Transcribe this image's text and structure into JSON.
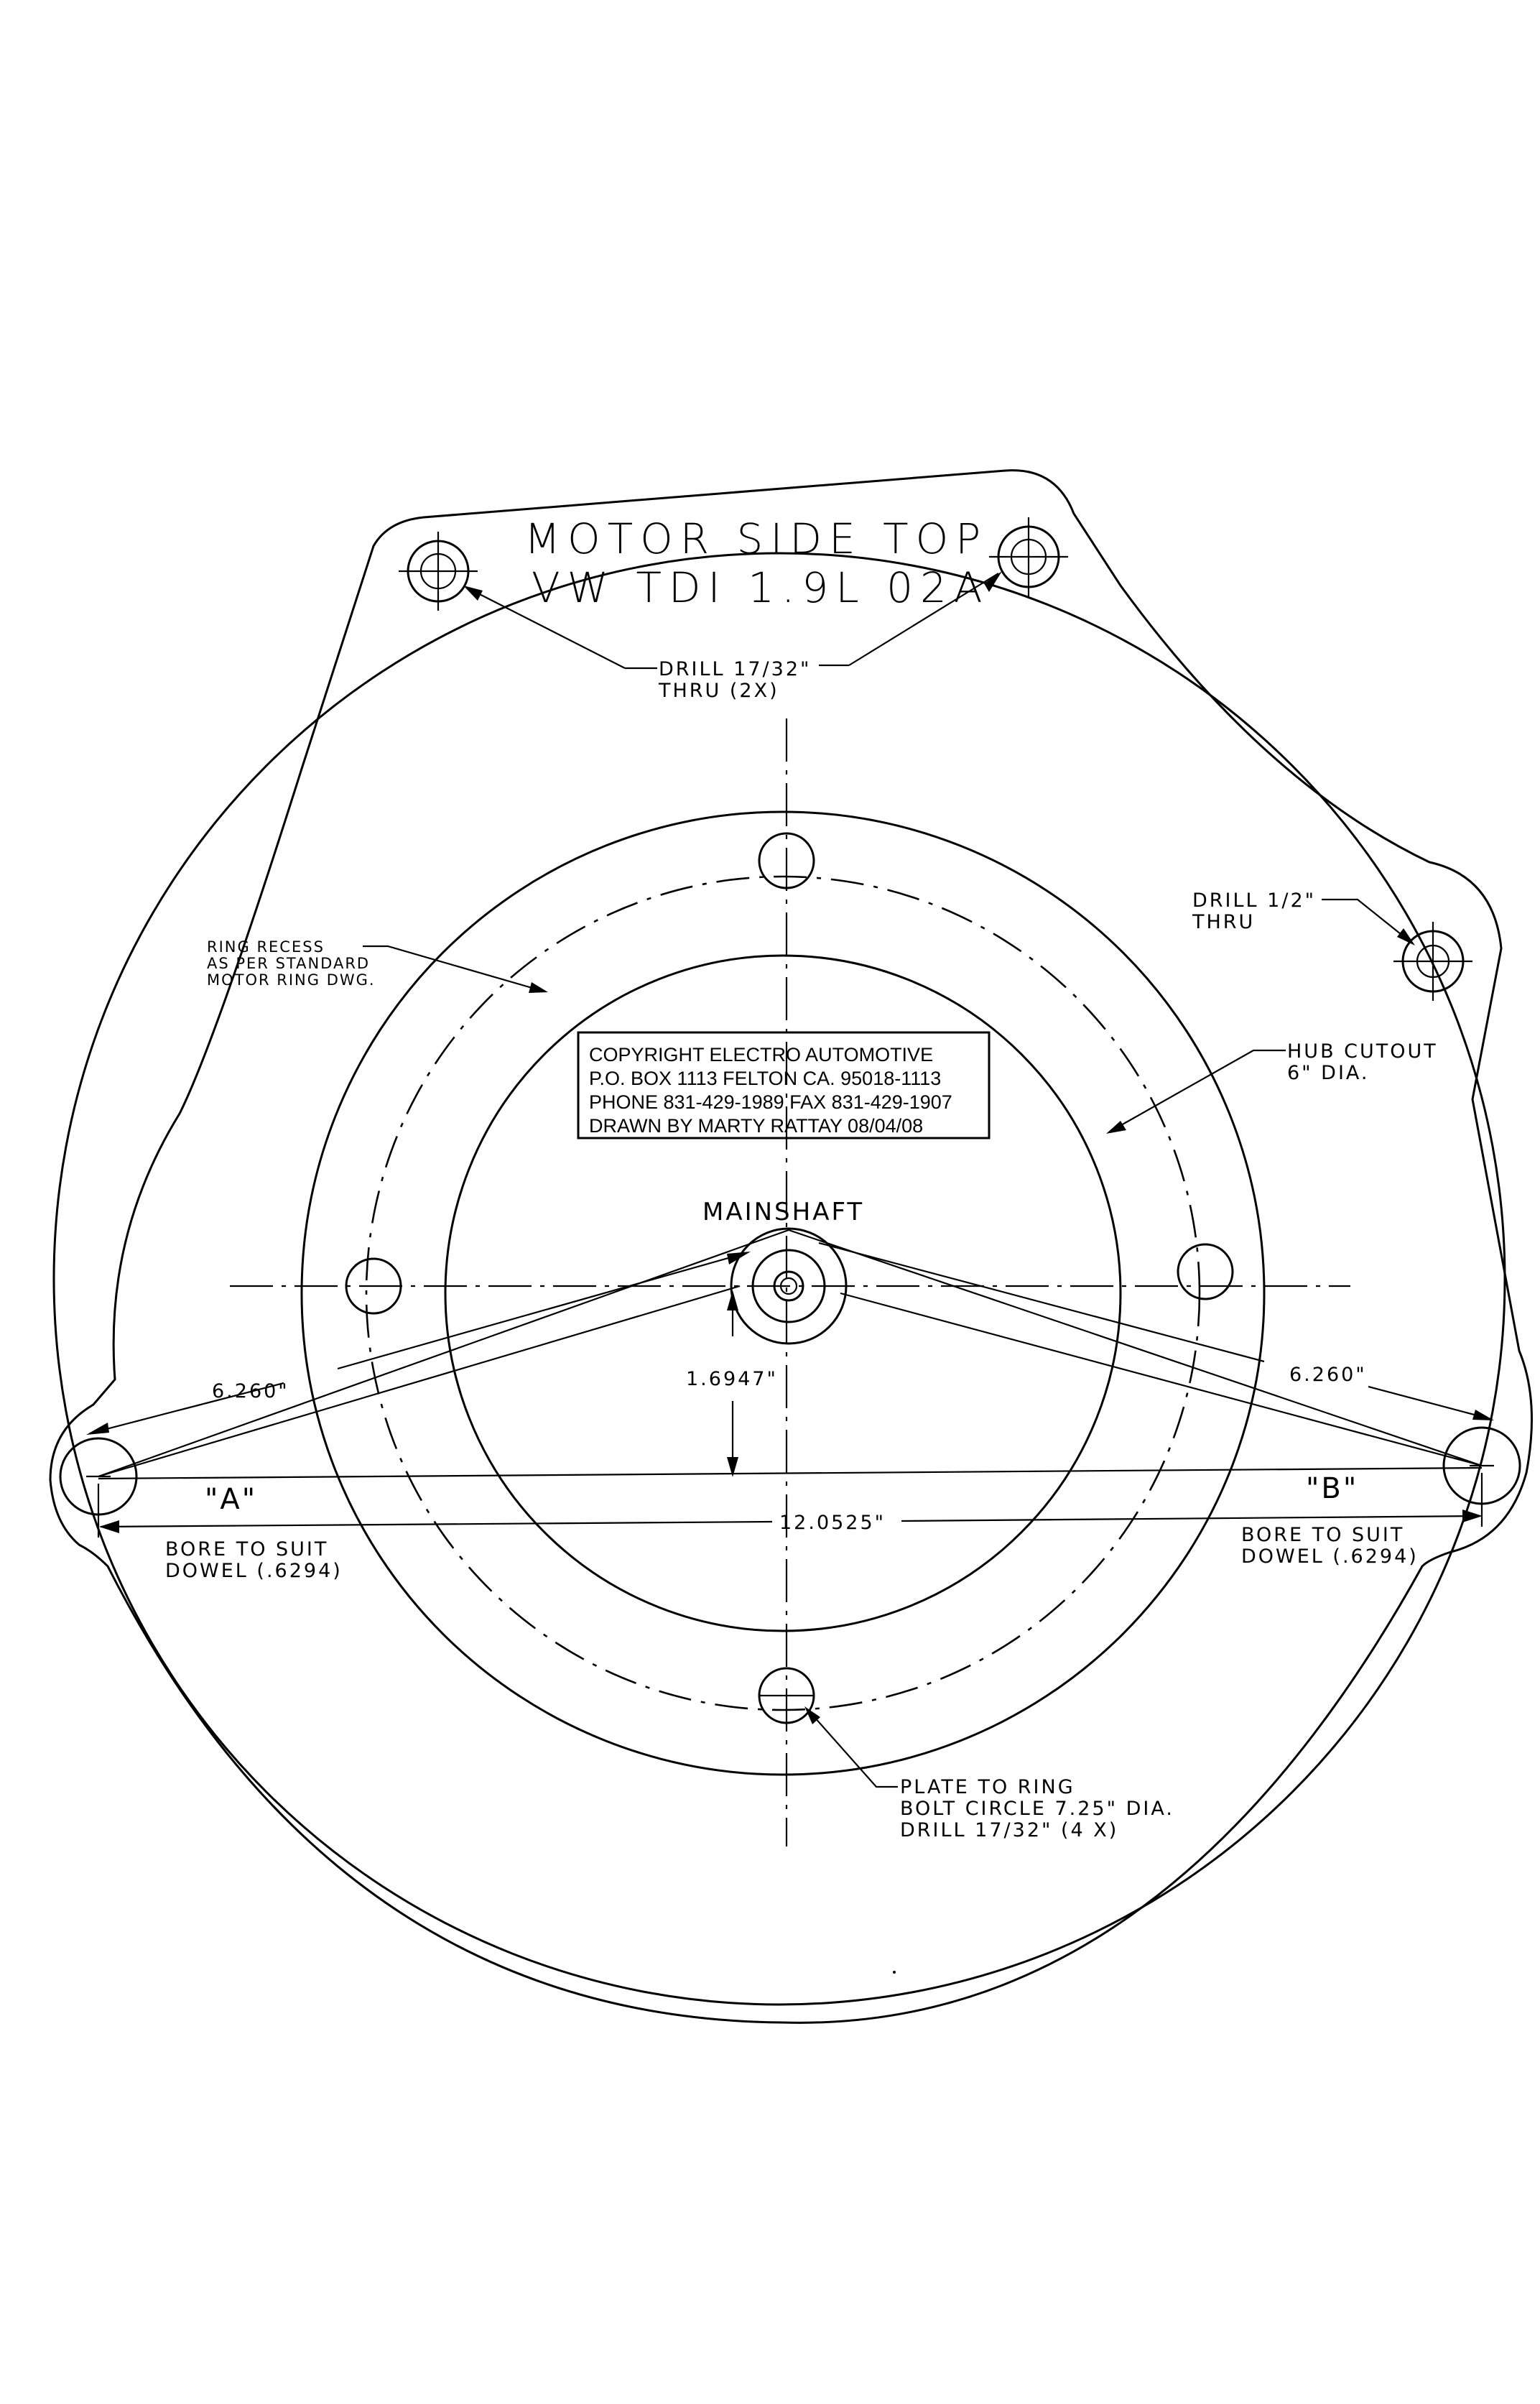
{
  "title": {
    "line1": "MOTOR SIDE TOP",
    "line2": "VW TDI 1.9L 02A"
  },
  "notes": {
    "drill_top": [
      "DRILL 17/32\"",
      "THRU (2X)"
    ],
    "drill_right": [
      "DRILL 1/2\"",
      "THRU"
    ],
    "ring_recess": [
      "RING RECESS",
      "AS PER STANDARD",
      "MOTOR RING DWG."
    ],
    "hub_cutout": [
      "HUB CUTOUT",
      "6\" DIA."
    ],
    "mainshaft": "MAINSHAFT",
    "bore_left": [
      "BORE TO SUIT",
      "DOWEL (.6294)"
    ],
    "bore_right": [
      "BORE TO SUIT",
      "DOWEL (.6294)"
    ],
    "plate_to_ring": [
      "PLATE TO RING",
      "BOLT CIRCLE 7.25\" DIA.",
      "DRILL 17/32\" (4 X)"
    ]
  },
  "copyright_box": [
    "COPYRIGHT ELECTRO AUTOMOTIVE",
    "P.O. BOX 1113 FELTON CA. 95018-1113",
    "PHONE 831-429-1989 FAX 831-429-1907",
    "DRAWN BY MARTY RATTAY 08/04/08"
  ],
  "dimensions": {
    "left_diag": "6.260\"",
    "right_diag": "6.260\"",
    "vertical": "1.6947\"",
    "horizontal": "12.0525\""
  },
  "labels": {
    "dowel_a": "\"A\"",
    "dowel_b": "\"B\""
  }
}
